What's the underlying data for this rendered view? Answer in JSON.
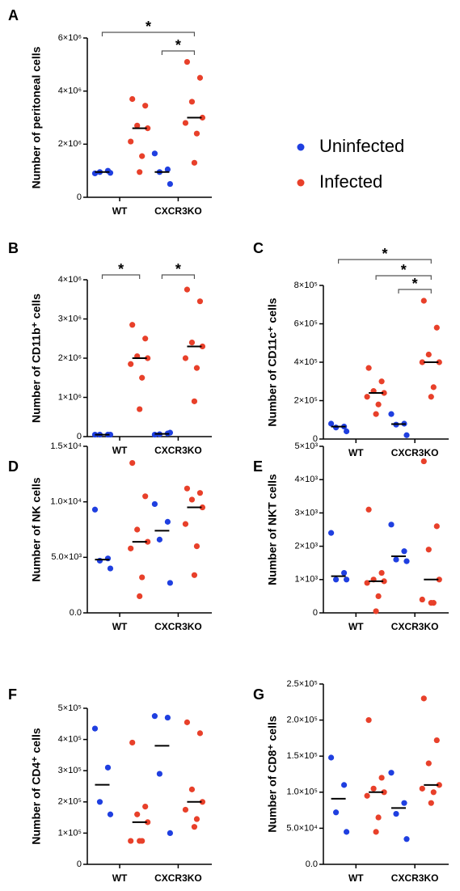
{
  "legend": [
    {
      "name": "Uninfected",
      "color": "#1f3fe0"
    },
    {
      "name": "Infected",
      "color": "#e8402a"
    }
  ],
  "chart_data": [
    {
      "type": "strip",
      "panel": "A",
      "ylabel": "Number of peritoneal cells",
      "categories": [
        "WT",
        "CXCR3KO"
      ],
      "ylim": [
        0,
        6000000
      ],
      "yticks": [
        0,
        {
          "value": 2000000,
          "label": "2×10⁶"
        },
        {
          "value": 4000000,
          "label": "4×10⁶"
        },
        {
          "value": 6000000,
          "label": "6×10⁶"
        }
      ],
      "series": [
        {
          "values": [
            [
              900000,
              1000000,
              950000,
              920000
            ],
            [
              1650000,
              1050000,
              950000,
              500000
            ]
          ],
          "medians": [
            950000,
            950000
          ]
        },
        {
          "values": [
            [
              3700000,
              3450000,
              2700000,
              2600000,
              2100000,
              1550000,
              950000
            ],
            [
              5100000,
              4500000,
              3600000,
              3000000,
              2800000,
              2400000,
              1300000
            ]
          ],
          "medians": [
            2600000,
            3000000
          ]
        }
      ],
      "brackets": [
        {
          "text": "*",
          "groups": [
            0,
            3
          ]
        },
        {
          "text": "*",
          "groups": [
            2,
            3
          ]
        }
      ]
    },
    {
      "type": "strip",
      "panel": "B",
      "ylabel": "Number of CD11b⁺ cells",
      "categories": [
        "WT",
        "CXCR3KO"
      ],
      "ylim": [
        0,
        4000000
      ],
      "yticks": [
        0,
        {
          "value": 1000000,
          "label": "1×10⁶"
        },
        {
          "value": 2000000,
          "label": "2×10⁶"
        },
        {
          "value": 3000000,
          "label": "3×10⁶"
        },
        {
          "value": 4000000,
          "label": "4×10⁶"
        }
      ],
      "series": [
        {
          "values": [
            [
              50000,
              50000,
              50000,
              50000
            ],
            [
              50000,
              80000,
              60000,
              100000
            ]
          ],
          "medians": [
            50000,
            70000
          ]
        },
        {
          "values": [
            [
              2850000,
              2500000,
              2050000,
              2000000,
              1850000,
              1500000,
              700000
            ],
            [
              3750000,
              3450000,
              2400000,
              2300000,
              2000000,
              1750000,
              900000
            ]
          ],
          "medians": [
            2000000,
            2300000
          ]
        }
      ],
      "brackets": [
        {
          "text": "*",
          "groups": [
            0,
            1
          ]
        },
        {
          "text": "*",
          "groups": [
            2,
            3
          ]
        }
      ]
    },
    {
      "type": "strip",
      "panel": "C",
      "ylabel": "Number of CD11c⁺ cells",
      "categories": [
        "WT",
        "CXCR3KO"
      ],
      "ylim": [
        0,
        800000
      ],
      "yticks": [
        0,
        {
          "value": 200000,
          "label": "2×10⁵"
        },
        {
          "value": 400000,
          "label": "4×10⁵"
        },
        {
          "value": 600000,
          "label": "6×10⁵"
        },
        {
          "value": 800000,
          "label": "8×10⁵"
        }
      ],
      "series": [
        {
          "values": [
            [
              80000,
              65000,
              60000,
              40000
            ],
            [
              130000,
              80000,
              75000,
              20000
            ]
          ],
          "medians": [
            65000,
            78000
          ]
        },
        {
          "values": [
            [
              370000,
              300000,
              250000,
              240000,
              220000,
              180000,
              130000
            ],
            [
              720000,
              580000,
              440000,
              400000,
              400000,
              270000,
              220000
            ]
          ],
          "medians": [
            240000,
            400000
          ]
        }
      ],
      "brackets": [
        {
          "text": "*",
          "groups": [
            0,
            3
          ]
        },
        {
          "text": "*",
          "groups": [
            1,
            3
          ]
        },
        {
          "text": "*",
          "groups": [
            2,
            3
          ]
        }
      ]
    },
    {
      "type": "strip",
      "panel": "D",
      "ylabel": "Number of NK cells",
      "categories": [
        "WT",
        "CXCR3KO"
      ],
      "ylim": [
        0,
        15000
      ],
      "yticks": [
        {
          "value": 0,
          "label": "0.0"
        },
        {
          "value": 5000,
          "label": "5.0×10³"
        },
        {
          "value": 10000,
          "label": "1.0×10⁴"
        },
        {
          "value": 15000,
          "label": "1.5×10⁴"
        }
      ],
      "series": [
        {
          "values": [
            [
              9300,
              4900,
              4700,
              4000
            ],
            [
              9800,
              8200,
              6600,
              2700
            ]
          ],
          "medians": [
            4800,
            7400
          ]
        },
        {
          "values": [
            [
              13500,
              10500,
              7500,
              6400,
              5800,
              3200,
              1500
            ],
            [
              11200,
              10800,
              10200,
              9500,
              8000,
              6000,
              3400
            ]
          ],
          "medians": [
            6400,
            9500
          ]
        }
      ],
      "brackets": []
    },
    {
      "type": "strip",
      "panel": "E",
      "ylabel": "Number of NKT cells",
      "categories": [
        "WT",
        "CXCR3KO"
      ],
      "ylim": [
        0,
        5000
      ],
      "yticks": [
        0,
        {
          "value": 1000,
          "label": "1×10³"
        },
        {
          "value": 2000,
          "label": "2×10³"
        },
        {
          "value": 3000,
          "label": "3×10³"
        },
        {
          "value": 4000,
          "label": "4×10³"
        },
        {
          "value": 5000,
          "label": "5×10³"
        }
      ],
      "series": [
        {
          "values": [
            [
              2400,
              1200,
              1000,
              1000
            ],
            [
              2650,
              1850,
              1600,
              1550
            ]
          ],
          "medians": [
            1100,
            1700
          ]
        },
        {
          "values": [
            [
              3100,
              1200,
              1000,
              950,
              900,
              500,
              50
            ],
            [
              4550,
              2600,
              1900,
              1000,
              400,
              300,
              300
            ]
          ],
          "medians": [
            950,
            1000
          ]
        }
      ],
      "brackets": []
    },
    {
      "type": "strip",
      "panel": "F",
      "ylabel": "Number of CD4⁺ cells",
      "categories": [
        "WT",
        "CXCR3KO"
      ],
      "ylim": [
        0,
        500000
      ],
      "yticks": [
        0,
        {
          "value": 100000,
          "label": "1×10⁵"
        },
        {
          "value": 200000,
          "label": "2×10⁵"
        },
        {
          "value": 300000,
          "label": "3×10⁵"
        },
        {
          "value": 400000,
          "label": "4×10⁵"
        },
        {
          "value": 500000,
          "label": "5×10⁵"
        }
      ],
      "series": [
        {
          "values": [
            [
              435000,
              310000,
              200000,
              160000
            ],
            [
              475000,
              470000,
              290000,
              100000
            ]
          ],
          "medians": [
            255000,
            380000
          ]
        },
        {
          "values": [
            [
              390000,
              185000,
              160000,
              135000,
              75000,
              75000,
              75000
            ],
            [
              455000,
              420000,
              240000,
              200000,
              175000,
              145000,
              120000
            ]
          ],
          "medians": [
            135000,
            200000
          ]
        }
      ],
      "brackets": []
    },
    {
      "type": "strip",
      "panel": "G",
      "ylabel": "Number of CD8⁺ cells",
      "categories": [
        "WT",
        "CXCR3KO"
      ],
      "ylim": [
        0,
        250000
      ],
      "yticks": [
        {
          "value": 0,
          "label": "0.0"
        },
        {
          "value": 50000,
          "label": "5.0×10⁴"
        },
        {
          "value": 100000,
          "label": "1.0×10⁵"
        },
        {
          "value": 150000,
          "label": "1.5×10⁵"
        },
        {
          "value": 200000,
          "label": "2.0×10⁵"
        },
        {
          "value": 250000,
          "label": "2.5×10⁵"
        }
      ],
      "series": [
        {
          "values": [
            [
              148000,
              110000,
              72000,
              45000
            ],
            [
              127000,
              85000,
              70000,
              35000
            ]
          ],
          "medians": [
            91000,
            78000
          ]
        },
        {
          "values": [
            [
              200000,
              120000,
              105000,
              100000,
              95000,
              65000,
              45000
            ],
            [
              230000,
              172000,
              140000,
              110000,
              105000,
              100000,
              85000
            ]
          ],
          "medians": [
            100000,
            110000
          ]
        }
      ],
      "brackets": []
    }
  ]
}
